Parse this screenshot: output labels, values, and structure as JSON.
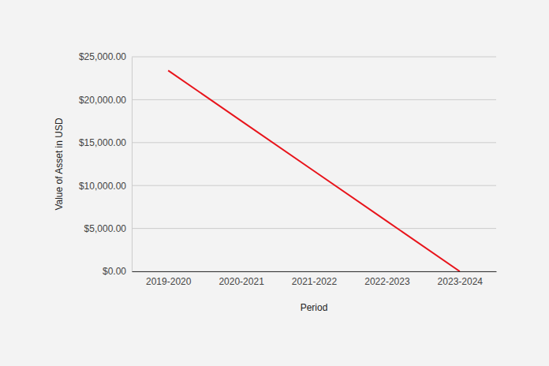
{
  "chart_data": {
    "type": "line",
    "x_label": "Period",
    "y_label": "Value of Asset in USD",
    "categories": [
      "2019-2020",
      "2020-2021",
      "2021-2022",
      "2022-2023",
      "2023-2024"
    ],
    "values": [
      23400,
      17550,
      11700,
      5850,
      0
    ],
    "color": "#e8141b",
    "ylim": [
      0,
      25000
    ],
    "yticks": [
      {
        "value": 0,
        "label": "$0.00"
      },
      {
        "value": 5000,
        "label": "$5,000.00"
      },
      {
        "value": 10000,
        "label": "$10,000.00"
      },
      {
        "value": 15000,
        "label": "$15,000.00"
      },
      {
        "value": 20000,
        "label": "$20,000.00"
      },
      {
        "value": 25000,
        "label": "$25,000.00"
      }
    ],
    "grid": true
  }
}
